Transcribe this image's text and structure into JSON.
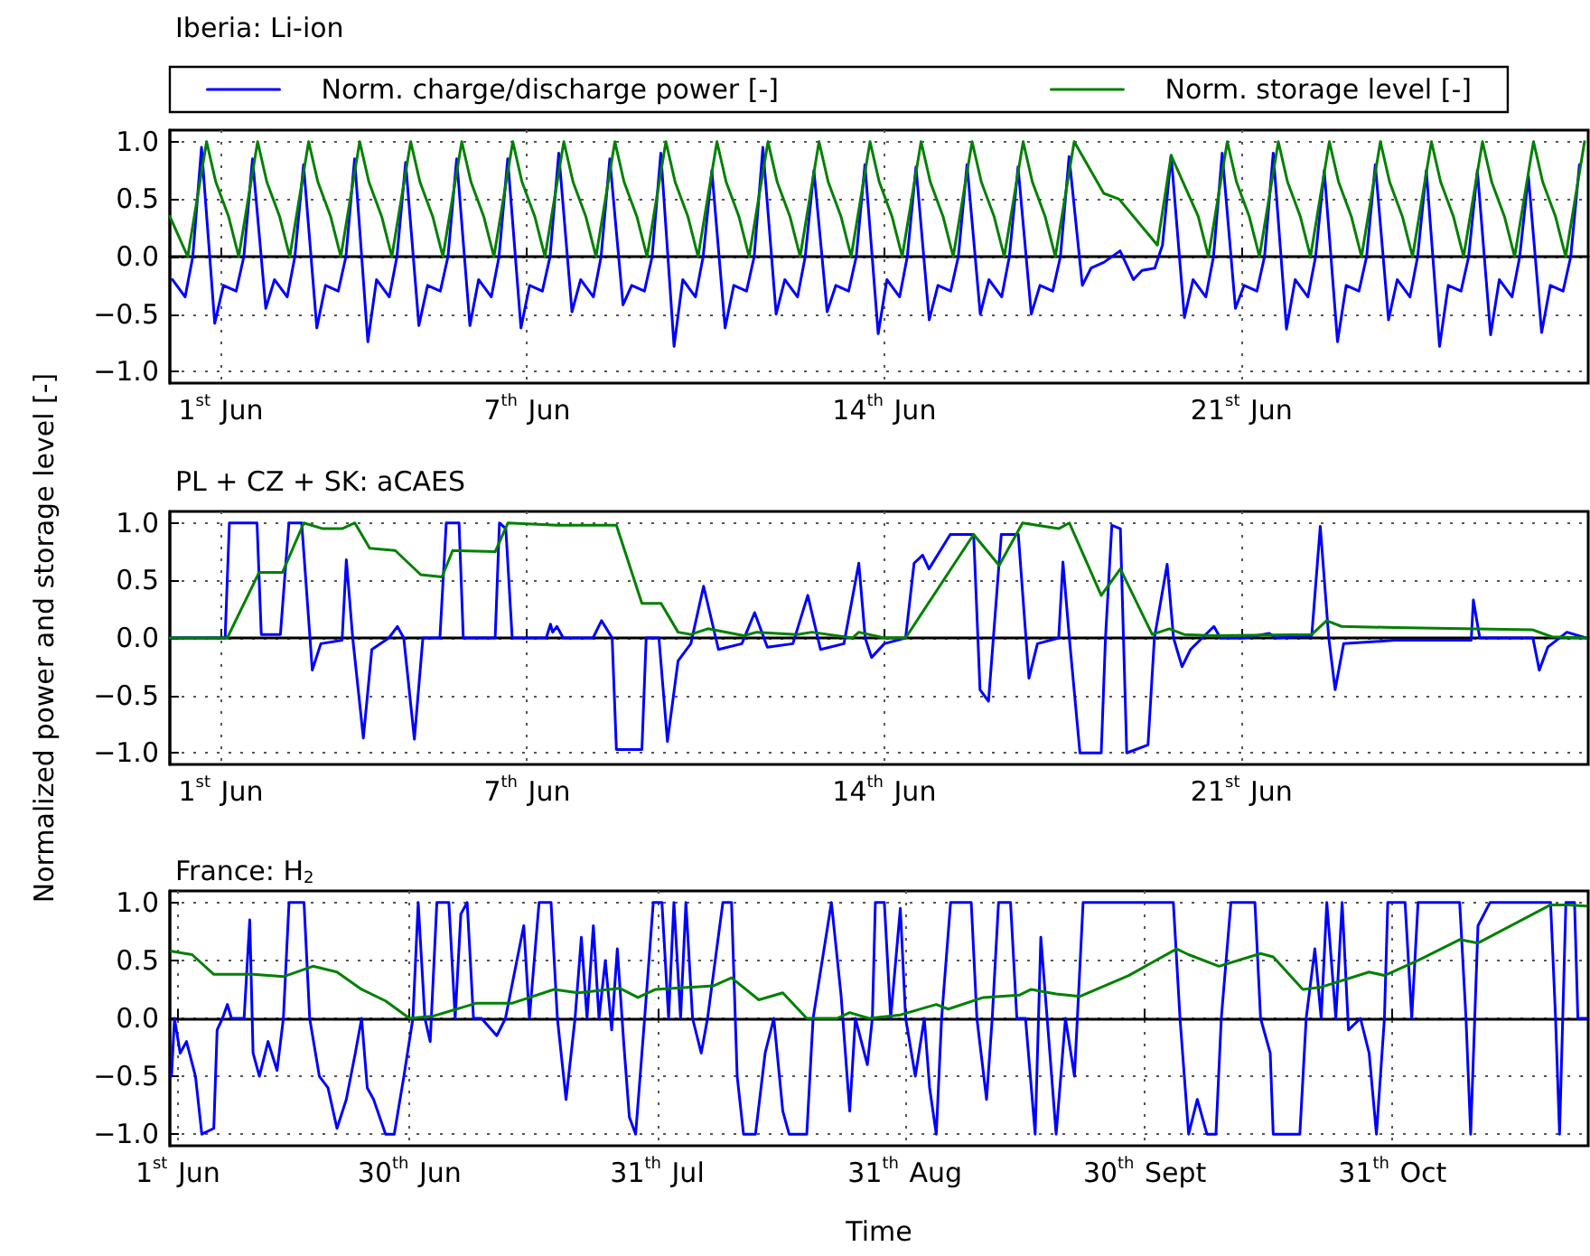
{
  "chart_data": [
    {
      "type": "line",
      "title": "Iberia: Li-ion",
      "legend": "top",
      "grid": true,
      "marker": "none",
      "line_style": "solid",
      "xlim": [
        "--05-31T00:00",
        "--06-27T19:00"
      ],
      "xticks": [
        {
          "value": "--06-01",
          "label": "1$^{st}$ Jun"
        },
        {
          "value": "--06-07",
          "label": "7$^{th}$ Jun"
        },
        {
          "value": "--06-14",
          "label": "14$^{th}$ Jun"
        },
        {
          "value": "--06-21",
          "label": "21$^{st}$ Jun"
        }
      ],
      "ylim": [
        -1.1,
        1.1
      ],
      "yticks": [
        {
          "value": -1,
          "label": "−1.0"
        },
        {
          "value": -0.5,
          "label": "−0.5"
        },
        {
          "value": 0,
          "label": "0.0"
        },
        {
          "value": 0.5,
          "label": "0.5"
        },
        {
          "value": 1,
          "label": "1.0"
        }
      ],
      "series": [
        {
          "name": "Norm. charge/discharge power [-]",
          "color": "#0000ff",
          "x": [
            "--05-31T01:12",
            "--05-31T07:12",
            "--05-31T10:48",
            "--05-31T14:53",
            "--05-31T21:07",
            "--06-01T01:12",
            "--06-01T07:12",
            "--06-01T10:48",
            "--06-01T14:53",
            "--06-01T21:07",
            "--06-02T01:12",
            "--06-02T07:12",
            "--06-02T10:48",
            "--06-02T14:53",
            "--06-02T21:07",
            "--06-03T01:12",
            "--06-03T07:12",
            "--06-03T10:48",
            "--06-03T14:53",
            "--06-03T21:07",
            "--06-04T01:12",
            "--06-04T07:12",
            "--06-04T10:48",
            "--06-04T14:53",
            "--06-04T21:07",
            "--06-05T01:12",
            "--06-05T07:12",
            "--06-05T10:48",
            "--06-05T14:53",
            "--06-05T21:07",
            "--06-06T01:12",
            "--06-06T07:12",
            "--06-06T10:48",
            "--06-06T14:53",
            "--06-06T21:07",
            "--06-07T01:12",
            "--06-07T07:12",
            "--06-07T10:48",
            "--06-07T14:53",
            "--06-07T21:07",
            "--06-08T01:12",
            "--06-08T07:12",
            "--06-08T10:48",
            "--06-08T14:53",
            "--06-08T21:07",
            "--06-09T01:12",
            "--06-09T07:12",
            "--06-09T10:48",
            "--06-09T14:53",
            "--06-09T21:07",
            "--06-10T01:12",
            "--06-10T07:12",
            "--06-10T10:48",
            "--06-10T14:53",
            "--06-10T21:07",
            "--06-11T01:12",
            "--06-11T07:12",
            "--06-11T10:48",
            "--06-11T14:53",
            "--06-11T21:07",
            "--06-12T01:12",
            "--06-12T07:12",
            "--06-12T10:48",
            "--06-12T14:53",
            "--06-12T21:07",
            "--06-13T01:12",
            "--06-13T07:12",
            "--06-13T10:48",
            "--06-13T14:53",
            "--06-13T21:07",
            "--06-14T01:12",
            "--06-14T07:12",
            "--06-14T10:48",
            "--06-14T14:53",
            "--06-14T21:07",
            "--06-15T01:12",
            "--06-15T07:12",
            "--06-15T10:48",
            "--06-15T14:53",
            "--06-15T21:07",
            "--06-16T01:12",
            "--06-16T07:12",
            "--06-16T10:48",
            "--06-16T14:53",
            "--06-16T21:07",
            "--06-17T01:12",
            "--06-17T07:12",
            "--06-17T10:48",
            "--06-17T14:53",
            "--06-17T21:07",
            "--06-18T01:12",
            "--06-18T07:12",
            "--06-18T14:53",
            "--06-18T21:07",
            "--06-19T01:12",
            "--06-19T07:12",
            "--06-19T10:48",
            "--06-19T14:53",
            "--06-19T21:07",
            "--06-20T01:12",
            "--06-20T07:12",
            "--06-20T10:48",
            "--06-20T14:53",
            "--06-20T21:07",
            "--06-21T01:12",
            "--06-21T07:12",
            "--06-21T10:48",
            "--06-21T14:53",
            "--06-21T21:07",
            "--06-22T01:12",
            "--06-22T07:12",
            "--06-22T10:48",
            "--06-22T14:53",
            "--06-22T21:07",
            "--06-23T01:12",
            "--06-23T07:12",
            "--06-23T10:48",
            "--06-23T14:53",
            "--06-23T21:07",
            "--06-24T01:12",
            "--06-24T07:12",
            "--06-24T10:48",
            "--06-24T14:53",
            "--06-24T21:07",
            "--06-25T01:12",
            "--06-25T07:12",
            "--06-25T10:48",
            "--06-25T14:53",
            "--06-25T21:07",
            "--06-26T01:12",
            "--06-26T07:12",
            "--06-26T10:48",
            "--06-26T14:53",
            "--06-26T21:07",
            "--06-27T01:12",
            "--06-27T07:12",
            "--06-27T10:48",
            "--06-27T14:53"
          ],
          "values": [
            -0.2,
            -0.35,
            0,
            0.95,
            -0.58,
            -0.25,
            -0.3,
            0,
            0.85,
            -0.45,
            -0.2,
            -0.35,
            0,
            0.8,
            -0.62,
            -0.25,
            -0.3,
            0,
            0.85,
            -0.74,
            -0.2,
            -0.35,
            0,
            0.82,
            -0.6,
            -0.25,
            -0.3,
            0,
            0.85,
            -0.6,
            -0.2,
            -0.35,
            0,
            0.85,
            -0.62,
            -0.25,
            -0.3,
            0,
            0.9,
            -0.48,
            -0.2,
            -0.35,
            0,
            0.85,
            -0.42,
            -0.25,
            -0.3,
            0,
            0.9,
            -0.78,
            -0.2,
            -0.35,
            0,
            0.75,
            -0.62,
            -0.25,
            -0.3,
            0,
            0.95,
            -0.5,
            -0.2,
            -0.35,
            0,
            0.75,
            -0.48,
            -0.25,
            -0.3,
            0,
            0.8,
            -0.67,
            -0.2,
            -0.35,
            0,
            0.78,
            -0.55,
            -0.25,
            -0.3,
            0,
            0.8,
            -0.5,
            -0.2,
            -0.35,
            0,
            0.78,
            -0.5,
            -0.25,
            -0.3,
            0,
            0.87,
            -0.25,
            -0.1,
            -0.05,
            0.05,
            -0.2,
            -0.12,
            -0.1,
            0.1,
            0.88,
            -0.53,
            -0.2,
            -0.35,
            0,
            0.9,
            -0.45,
            -0.25,
            -0.3,
            0,
            0.9,
            -0.63,
            -0.2,
            -0.35,
            0,
            0.75,
            -0.74,
            -0.25,
            -0.3,
            0,
            0.8,
            -0.55,
            -0.2,
            -0.35,
            0,
            0.75,
            -0.78,
            -0.25,
            -0.3,
            0,
            0.75,
            -0.68,
            -0.2,
            -0.35,
            0,
            0.7,
            -0.66,
            -0.25,
            -0.3,
            0,
            0.8
          ]
        },
        {
          "name": "Norm. storage level [-]",
          "color": "#008000",
          "x": [
            "--05-31T00:00",
            "--05-31T08:24",
            "--05-31T17:17",
            "--05-31T21:36",
            "--06-01T03:36",
            "--06-01T08:24",
            "--06-01T17:17",
            "--06-01T21:36",
            "--06-02T03:36",
            "--06-02T08:24",
            "--06-02T17:17",
            "--06-02T21:36",
            "--06-03T03:36",
            "--06-03T08:24",
            "--06-03T17:17",
            "--06-03T21:36",
            "--06-04T03:36",
            "--06-04T08:24",
            "--06-04T17:17",
            "--06-04T21:36",
            "--06-05T03:36",
            "--06-05T08:24",
            "--06-05T17:17",
            "--06-05T21:36",
            "--06-06T03:36",
            "--06-06T08:24",
            "--06-06T17:17",
            "--06-06T21:36",
            "--06-07T03:36",
            "--06-07T08:24",
            "--06-07T17:17",
            "--06-07T21:36",
            "--06-08T03:36",
            "--06-08T08:24",
            "--06-08T17:17",
            "--06-08T21:36",
            "--06-09T03:36",
            "--06-09T08:24",
            "--06-09T17:17",
            "--06-09T21:36",
            "--06-10T03:36",
            "--06-10T08:24",
            "--06-10T17:17",
            "--06-10T21:36",
            "--06-11T03:36",
            "--06-11T08:24",
            "--06-11T17:17",
            "--06-11T21:36",
            "--06-12T03:36",
            "--06-12T08:24",
            "--06-12T17:17",
            "--06-12T21:36",
            "--06-13T03:36",
            "--06-13T08:24",
            "--06-13T17:17",
            "--06-13T21:36",
            "--06-14T03:36",
            "--06-14T08:24",
            "--06-14T17:17",
            "--06-14T21:36",
            "--06-15T03:36",
            "--06-15T08:24",
            "--06-15T17:17",
            "--06-15T21:36",
            "--06-16T03:36",
            "--06-16T08:24",
            "--06-16T17:17",
            "--06-16T21:36",
            "--06-17T03:36",
            "--06-17T08:24",
            "--06-17T17:17",
            "--06-18T07:12",
            "--06-18T14:24",
            "--06-19T08:24",
            "--06-19T14:53",
            "--06-19T21:36",
            "--06-20T03:36",
            "--06-20T08:24",
            "--06-20T17:17",
            "--06-20T21:36",
            "--06-21T03:36",
            "--06-21T08:24",
            "--06-21T17:17",
            "--06-21T21:36",
            "--06-22T03:36",
            "--06-22T08:24",
            "--06-22T17:17",
            "--06-22T21:36",
            "--06-23T03:36",
            "--06-23T08:24",
            "--06-23T17:17",
            "--06-23T21:36",
            "--06-24T03:36",
            "--06-24T08:24",
            "--06-24T17:17",
            "--06-24T21:36",
            "--06-25T03:36",
            "--06-25T08:24",
            "--06-25T17:17",
            "--06-25T21:36",
            "--06-26T03:36",
            "--06-26T08:24",
            "--06-26T17:17",
            "--06-26T21:36",
            "--06-27T03:36",
            "--06-27T08:24",
            "--06-27T17:17"
          ],
          "values": [
            0.35,
            0,
            1,
            0.65,
            0.35,
            0,
            1,
            0.65,
            0.35,
            0,
            1,
            0.65,
            0.35,
            0,
            1,
            0.65,
            0.35,
            0,
            1,
            0.65,
            0.35,
            0,
            1,
            0.65,
            0.35,
            0,
            1,
            0.65,
            0.35,
            0,
            1,
            0.65,
            0.35,
            0,
            1,
            0.65,
            0.35,
            0,
            1,
            0.65,
            0.35,
            0,
            1,
            0.65,
            0.35,
            0,
            1,
            0.65,
            0.35,
            0,
            1,
            0.65,
            0.35,
            0,
            1,
            0.65,
            0.35,
            0,
            1,
            0.65,
            0.35,
            0,
            1,
            0.65,
            0.35,
            0,
            1,
            0.65,
            0.35,
            0,
            1,
            0.55,
            0.5,
            0.1,
            0.88,
            0.6,
            0.35,
            0,
            1,
            0.65,
            0.35,
            0,
            1,
            0.65,
            0.35,
            0,
            1,
            0.65,
            0.35,
            0,
            1,
            0.65,
            0.35,
            0,
            1,
            0.65,
            0.35,
            0,
            1,
            0.65,
            0.35,
            0,
            1,
            0.65,
            0.35,
            0,
            1
          ]
        }
      ]
    },
    {
      "type": "line",
      "title": "PL + CZ + SK: aCAES",
      "ylabel": "Normalized power and storage level [-]",
      "grid": true,
      "marker": "none",
      "line_style": "solid",
      "xlim": [
        "--05-31T00:00",
        "--06-27T19:00"
      ],
      "xticks": [
        {
          "value": "--06-01",
          "label": "1$^{st}$ Jun"
        },
        {
          "value": "--06-07",
          "label": "7$^{th}$ Jun"
        },
        {
          "value": "--06-14",
          "label": "14$^{th}$ Jun"
        },
        {
          "value": "--06-21",
          "label": "21$^{st}$ Jun"
        }
      ],
      "ylim": [
        -1.1,
        1.1
      ],
      "yticks": [
        {
          "value": -1,
          "label": "−1.0"
        },
        {
          "value": -0.5,
          "label": "−0.5"
        },
        {
          "value": 0,
          "label": "0.0"
        },
        {
          "value": 0.5,
          "label": "0.5"
        },
        {
          "value": 1,
          "label": "1.0"
        }
      ],
      "series": [
        {
          "color": "#0000ff",
          "x": [
            "--05-31T00:00",
            "--06-01T02:00",
            "--06-01T04:00",
            "--06-01T17:00",
            "--06-01T19:00",
            "--06-02T04:00",
            "--06-02T08:00",
            "--06-02T14:00",
            "--06-02T19:00",
            "--06-02T23:00",
            "--06-03T09:00",
            "--06-03T11:00",
            "--06-03T14:00",
            "--06-03T19:00",
            "--06-03T23:00",
            "--06-04T07:00",
            "--06-04T11:00",
            "--06-04T14:00",
            "--06-04T19:00",
            "--06-04T23:00",
            "--06-05T07:00",
            "--06-05T10:00",
            "--06-05T16:00",
            "--06-05T18:00",
            "--06-06T09:00",
            "--06-06T11:00",
            "--06-06T14:00",
            "--06-06T17:00",
            "--06-07T09:00",
            "--06-07T11:00",
            "--06-07T12:00",
            "--06-07T14:00",
            "--06-07T17:00",
            "--06-08T07:00",
            "--06-08T11:00",
            "--06-08T16:00",
            "--06-08T18:00",
            "--06-09T06:00",
            "--06-09T08:00",
            "--06-09T14:00",
            "--06-09T18:00",
            "--06-09T23:00",
            "--06-10T05:00",
            "--06-10T11:00",
            "--06-10T18:00",
            "--06-11T05:00",
            "--06-11T11:00",
            "--06-11T17:00",
            "--06-12T05:00",
            "--06-12T12:00",
            "--06-12T18:00",
            "--06-13T05:00",
            "--06-13T12:00",
            "--06-13T15:00",
            "--06-13T18:00",
            "--06-14T00:00",
            "--06-14T10:00",
            "--06-14T14:00",
            "--06-14T18:00",
            "--06-14T21:00",
            "--06-15T07:00",
            "--06-15T18:00",
            "--06-15T21:00",
            "--06-16T01:00",
            "--06-16T07:00",
            "--06-16T15:00",
            "--06-16T20:00",
            "--06-17T00:00",
            "--06-17T10:00",
            "--06-17T12:00",
            "--06-17T15:00",
            "--06-17T20:00",
            "--06-18T06:00",
            "--06-18T08:00",
            "--06-18T11:00",
            "--06-18T15:00",
            "--06-18T18:00",
            "--06-19T04:00",
            "--06-19T07:00",
            "--06-19T13:00",
            "--06-19T16:00",
            "--06-19T20:00",
            "--06-20T00:00",
            "--06-20T11:00",
            "--06-20T14:00",
            "--06-21T01:00",
            "--06-21T13:00",
            "--06-21T16:00",
            "--06-22T09:00",
            "--06-22T13:00",
            "--06-22T17:00",
            "--06-22T20:00",
            "--06-23T00:00",
            "--06-24T00:00",
            "--06-25T12:00",
            "--06-25T13:00",
            "--06-25T16:00",
            "--06-26T17:00",
            "--06-26T20:00",
            "--06-27T00:00",
            "--06-27T09:00",
            "--06-27T18:00"
          ],
          "values": [
            0,
            0,
            1,
            1,
            0.03,
            0.03,
            1,
            1,
            -0.28,
            -0.05,
            -0.02,
            0.68,
            0,
            -0.87,
            -0.1,
            0,
            0.1,
            0,
            -0.88,
            0,
            0,
            1,
            1,
            0,
            0,
            1,
            0.95,
            0,
            0,
            0.12,
            0.05,
            0.1,
            0,
            0,
            0.15,
            0,
            -0.97,
            -0.97,
            0,
            0,
            -0.9,
            -0.2,
            -0.05,
            0.45,
            -0.1,
            -0.05,
            0.22,
            -0.08,
            -0.05,
            0.37,
            -0.1,
            -0.05,
            0.65,
            0,
            -0.17,
            -0.05,
            0,
            0.65,
            0.72,
            0.6,
            0.9,
            0.9,
            -0.45,
            -0.55,
            0.9,
            0.9,
            -0.35,
            -0.05,
            0,
            0.66,
            0,
            -1,
            -1,
            0,
            0.98,
            0.95,
            -1,
            -0.93,
            0,
            0.64,
            0,
            -0.25,
            -0.1,
            0.1,
            0,
            0,
            0.04,
            0,
            0.02,
            0.97,
            0,
            -0.45,
            -0.05,
            -0.02,
            -0.02,
            0.33,
            0,
            0,
            -0.28,
            -0.08,
            0.05,
            0
          ]
        },
        {
          "color": "#008000",
          "x": [
            "--05-31T00:00",
            "--06-01T03:00",
            "--06-01T18:00",
            "--06-02T05:00",
            "--06-02T15:00",
            "--06-03T00:00",
            "--06-03T09:00",
            "--06-03T15:00",
            "--06-03T22:00",
            "--06-04T10:00",
            "--06-04T22:00",
            "--06-05T08:00",
            "--06-05T13:00",
            "--06-06T09:00",
            "--06-06T15:00",
            "--06-07T14:00",
            "--06-08T18:00",
            "--06-09T06:00",
            "--06-09T15:00",
            "--06-09T23:00",
            "--06-10T05:00",
            "--06-10T13:00",
            "--06-11T06:00",
            "--06-11T12:00",
            "--06-12T07:00",
            "--06-12T14:00",
            "--06-13T09:00",
            "--06-13T12:00",
            "--06-14T00:00",
            "--06-14T10:00",
            "--06-15T18:00",
            "--06-16T06:00",
            "--06-16T17:00",
            "--06-17T10:00",
            "--06-17T15:00",
            "--06-18T06:00",
            "--06-18T15:00",
            "--06-19T06:00",
            "--06-19T14:00",
            "--06-19T21:00",
            "--06-20T11:00",
            "--06-22T09:00",
            "--06-22T16:00",
            "--06-22T23:00",
            "--06-24T00:00",
            "--06-26T17:00",
            "--06-27T02:00",
            "--06-27T18:00"
          ],
          "values": [
            0,
            0,
            0.57,
            0.57,
            1,
            0.95,
            0.95,
            1,
            0.78,
            0.76,
            0.55,
            0.53,
            0.76,
            0.75,
            1,
            0.98,
            0.98,
            0.3,
            0.3,
            0.05,
            0.03,
            0.08,
            0.02,
            0.05,
            0.03,
            0.05,
            0,
            0.05,
            0,
            0,
            0.9,
            0.63,
            1,
            0.95,
            1,
            0.37,
            0.6,
            0.03,
            0.08,
            0.03,
            0.02,
            0.03,
            0.15,
            0.1,
            0.09,
            0.07,
            0.01,
            0
          ]
        }
      ]
    },
    {
      "type": "line",
      "title": "France: H$_{2}$",
      "xlabel": "Time",
      "grid": true,
      "marker": "none",
      "line_style": "solid",
      "xlim": [
        "--05-31T00:00",
        "--11-24T12:00"
      ],
      "xticks": [
        {
          "value": "--06-01",
          "label": "1$^{st}$ Jun"
        },
        {
          "value": "--06-30",
          "label": "30$^{th}$ Jun"
        },
        {
          "value": "--07-31",
          "label": "31$^{th}$ Jul"
        },
        {
          "value": "--08-31",
          "label": "31$^{th}$ Aug"
        },
        {
          "value": "--09-30",
          "label": "30$^{th}$ Sept"
        },
        {
          "value": "--10-31",
          "label": "31$^{th}$ Oct"
        }
      ],
      "ylim": [
        -1.1,
        1.1
      ],
      "yticks": [
        {
          "value": -1,
          "label": "−1.0"
        },
        {
          "value": -0.5,
          "label": "−0.5"
        },
        {
          "value": 0,
          "label": "0.0"
        },
        {
          "value": 0.5,
          "label": "0.5"
        },
        {
          "value": 1,
          "label": "1.0"
        }
      ],
      "series": [
        {
          "color": "#0000ff",
          "x": [
            "--05-31T05:00",
            "--05-31T14:00",
            "--06-01T07:00",
            "--06-02T02:00",
            "--06-03T05:00",
            "--06-04T00:00",
            "--06-05T12:00",
            "--06-05T22:00",
            "--06-06T14:00",
            "--06-07T05:00",
            "--06-07T17:00",
            "--06-09T07:00",
            "--06-10T00:00",
            "--06-10T10:00",
            "--06-11T05:00",
            "--06-12T07:00",
            "--06-13T10:00",
            "--06-14T05:00",
            "--06-14T22:00",
            "--06-16T19:00",
            "--06-17T12:00",
            "--06-18T17:00",
            "--06-19T19:00",
            "--06-20T22:00",
            "--06-22T02:00",
            "--06-23T05:00",
            "--06-24T00:00",
            "--06-24T17:00",
            "--06-25T12:00",
            "--06-27T00:00",
            "--06-28T02:00",
            "--06-29T07:00",
            "--06-30T10:00",
            "--07-01T02:00",
            "--07-01T22:00",
            "--07-02T14:00",
            "--07-03T10:00",
            "--07-04T22:00",
            "--07-05T17:00",
            "--07-06T10:00",
            "--07-07T05:00",
            "--07-08T00:00",
            "--07-09T00:00",
            "--07-10T22:00",
            "--07-12T00:00",
            "--07-14T07:00",
            "--07-15T00:00",
            "--07-16T05:00",
            "--07-17T17:00",
            "--07-18T12:00",
            "--07-19T14:00",
            "--07-20T17:00",
            "--07-21T12:00",
            "--07-22T05:00",
            "--07-23T00:00",
            "--07-23T17:00",
            "--07-24T12:00",
            "--07-25T07:00",
            "--07-26T00:00",
            "--07-26T19:00",
            "--07-27T12:00",
            "--07-28T07:00",
            "--07-29T10:00",
            "--07-30T12:00",
            "--07-31T14:00",
            "--08-01T10:00",
            "--08-02T02:00",
            "--08-02T22:00",
            "--08-03T14:00",
            "--08-04T10:00",
            "--08-05T12:00",
            "--08-06T07:00",
            "--08-08T05:00",
            "--08-09T07:00",
            "--08-10T00:00",
            "--08-10T19:00",
            "--08-12T07:00",
            "--08-13T12:00",
            "--08-14T14:00",
            "--08-15T17:00",
            "--08-16T12:00",
            "--08-18T17:00",
            "--08-19T12:00",
            "--08-21T19:00",
            "--08-23T00:00",
            "--08-24T02:00",
            "--08-24T19:00",
            "--08-26T07:00",
            "--08-26T22:00",
            "--08-27T07:00",
            "--08-28T10:00",
            "--08-29T05:00",
            "--08-30T10:00",
            "--08-31T02:00",
            "--09-01T07:00",
            "--09-02T10:00",
            "--09-03T02:00",
            "--09-03T22:00",
            "--09-04T14:00",
            "--09-05T17:00",
            "--09-08T07:00",
            "--09-09T00:00",
            "--09-10T05:00",
            "--09-10T22:00",
            "--09-11T17:00",
            "--09-13T05:00",
            "--09-14T00:00",
            "--09-15T02:00",
            "--09-16T07:00",
            "--09-17T00:00",
            "--09-17T19:00",
            "--09-18T22:00",
            "--09-20T02:00",
            "--09-21T05:00",
            "--09-22T07:00",
            "--09-27T05:00",
            "--10-01T00:00",
            "--10-03T14:00",
            "--10-04T10:00",
            "--10-05T12:00",
            "--10-06T14:00",
            "--10-07T19:00",
            "--10-08T22:00",
            "--10-09T14:00",
            "--10-10T19:00",
            "--10-13T19:00",
            "--10-14T12:00",
            "--10-15T17:00",
            "--10-16T02:00",
            "--10-19T10:00",
            "--10-20T05:00",
            "--10-21T07:00",
            "--10-22T02:00",
            "--10-22T19:00",
            "--10-23T22:00",
            "--10-24T17:00",
            "--10-25T12:00",
            "--10-27T00:00",
            "--10-28T02:00",
            "--10-29T00:00",
            "--10-30T00:00",
            "--10-30T10:00",
            "--11-01T14:00",
            "--11-02T10:00",
            "--11-03T05:00",
            "--11-08T10:00",
            "--11-09T05:00",
            "--11-09T19:00",
            "--11-10T17:00",
            "--11-12T05:00",
            "--11-19T19:00",
            "--11-20T10:00",
            "--11-20T22:00",
            "--11-21T17:00",
            "--11-22T19:00",
            "--11-23T05:00",
            "--11-24T07:00"
          ],
          "values": [
            -0.5,
            0,
            -0.3,
            -0.2,
            -0.5,
            -1,
            -0.95,
            -0.1,
            0,
            0.12,
            0,
            0,
            0.85,
            -0.3,
            -0.5,
            -0.2,
            -0.45,
            0,
            1,
            1,
            0,
            -0.5,
            -0.6,
            -0.95,
            -0.7,
            -0.3,
            0,
            -0.6,
            -0.7,
            -1,
            -1,
            -0.5,
            0,
            1,
            0,
            -0.2,
            1,
            1,
            0,
            0.9,
            1,
            0,
            0,
            -0.15,
            0,
            0.8,
            0,
            1,
            1,
            0,
            -0.7,
            0,
            0.7,
            0,
            0.8,
            0,
            0.5,
            -0.1,
            0.6,
            -0.2,
            -0.85,
            -1,
            0,
            1,
            1,
            0,
            1,
            0,
            1,
            0,
            -0.3,
            0,
            1,
            1,
            -0.5,
            -1,
            -1,
            -0.3,
            0,
            -0.8,
            -1,
            -1,
            0,
            1,
            0.2,
            -0.8,
            0,
            -0.4,
            0,
            1,
            1,
            0,
            0.95,
            0,
            -0.5,
            0,
            -0.6,
            -1,
            0,
            1,
            1,
            0,
            -0.7,
            0,
            1,
            1,
            0,
            0,
            -1,
            0.7,
            0,
            -1,
            0,
            -0.5,
            1,
            1,
            1,
            1,
            0,
            -1,
            -0.7,
            -1,
            -1,
            0,
            1,
            1,
            0,
            -0.3,
            -1,
            -1,
            0,
            0.6,
            0,
            1,
            0,
            1,
            -0.1,
            0,
            -0.3,
            -1,
            0,
            1,
            1,
            0,
            1,
            1,
            0,
            -1,
            0.8,
            1,
            1,
            0,
            -1,
            1,
            1,
            0,
            0
          ]
        },
        {
          "color": "#008000",
          "x": [
            "--05-31T05:00",
            "--06-02T19:00",
            "--06-05T12:00",
            "--06-10T10:00",
            "--06-14T05:00",
            "--06-17T22:00",
            "--06-20T22:00",
            "--06-24T00:00",
            "--06-27T00:00",
            "--06-30T00:00",
            "--07-03T00:00",
            "--07-08T07:00",
            "--07-12T19:00",
            "--07-18T02:00",
            "--07-21T02:00",
            "--07-26T07:00",
            "--07-28T14:00",
            "--07-30T19:00",
            "--08-04T10:00",
            "--08-07T00:00",
            "--08-09T07:00",
            "--08-12T17:00",
            "--08-15T17:00",
            "--08-18T17:00",
            "--08-22T12:00",
            "--08-24T02:00",
            "--08-26T12:00",
            "--08-30T10:00",
            "--09-03T22:00",
            "--09-05T10:00",
            "--09-09T19:00",
            "--09-14T07:00",
            "--09-15T19:00",
            "--09-18T22:00",
            "--09-21T22:00",
            "--09-28T00:00",
            "--10-04T00:00",
            "--10-05T12:00",
            "--10-09T07:00",
            "--10-14T12:00",
            "--10-16T02:00",
            "--10-19T19:00",
            "--10-22T02:00",
            "--10-28T02:00",
            "--10-30T00:00",
            "--11-03T05:00",
            "--11-08T10:00",
            "--11-10T17:00",
            "--11-19T19:00",
            "--11-22T02:00",
            "--11-24T07:00"
          ],
          "values": [
            0.58,
            0.55,
            0.38,
            0.38,
            0.36,
            0.45,
            0.4,
            0.25,
            0.15,
            0,
            0.02,
            0.13,
            0.13,
            0.25,
            0.22,
            0.26,
            0.18,
            0.25,
            0.27,
            0.28,
            0.35,
            0.16,
            0.22,
            0,
            0,
            0.05,
            0,
            0.03,
            0.12,
            0.08,
            0.18,
            0.2,
            0.25,
            0.21,
            0.19,
            0.37,
            0.6,
            0.55,
            0.45,
            0.56,
            0.53,
            0.25,
            0.27,
            0.4,
            0.37,
            0.5,
            0.68,
            0.65,
            0.98,
            0.98,
            0.97
          ]
        }
      ]
    }
  ]
}
